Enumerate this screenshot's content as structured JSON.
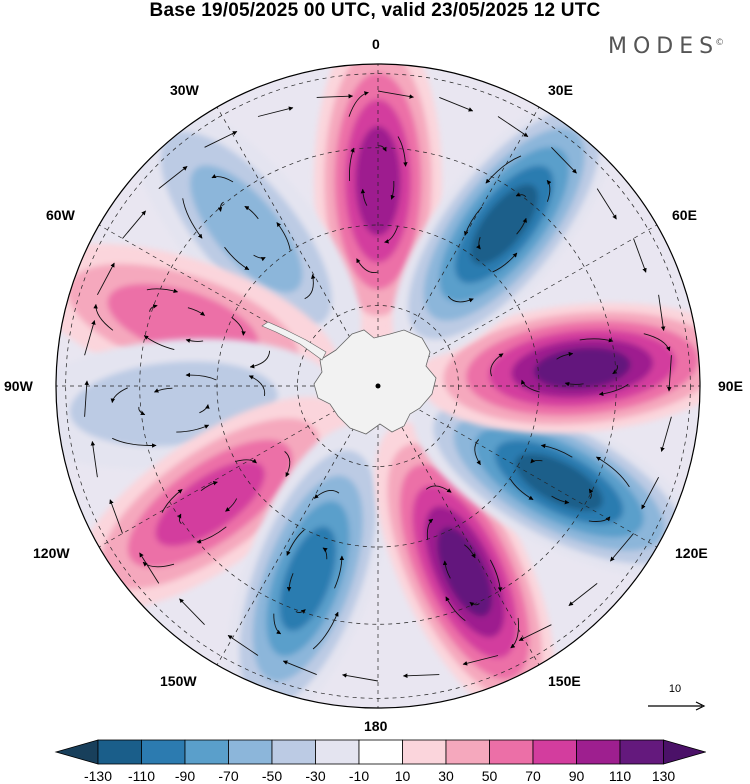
{
  "title": "Base 19/05/2025 00 UTC, valid 23/05/2025 12 UTC",
  "brand": "MODES",
  "brand_mark": "©",
  "longitude_labels": {
    "l0": "0",
    "l30e": "30E",
    "l60e": "60E",
    "l90e": "90E",
    "l120e": "120E",
    "l150e": "150E",
    "l180": "180",
    "l150w": "150W",
    "l120w": "120W",
    "l90w": "90W",
    "l60w": "60W",
    "l30w": "30W"
  },
  "reference_vector": {
    "label": "10"
  },
  "colorbar": {
    "labels": [
      "-130",
      "-110",
      "-90",
      "-70",
      "-50",
      "-30",
      "-10",
      "10",
      "30",
      "50",
      "70",
      "90",
      "110",
      "130"
    ],
    "colors": [
      "#183f5b",
      "#1a5e8a",
      "#2c7bb0",
      "#5a9fcb",
      "#8cb6da",
      "#bccbe4",
      "#e4e4f0",
      "#ffffff",
      "#fbd5dc",
      "#f5a8bd",
      "#ec6fa7",
      "#d33d9e",
      "#9e1f8f",
      "#64197d",
      "#4b1168"
    ]
  },
  "map": {
    "projection": "south polar stereographic",
    "lobes": [
      {
        "name": "lobe-0",
        "center_lon": 0,
        "sign": "positive",
        "peak": 110
      },
      {
        "name": "lobe-30w",
        "center_lon": -40,
        "sign": "negative",
        "peak": -70
      },
      {
        "name": "lobe-75w",
        "center_lon": -72,
        "sign": "positive",
        "peak": 70
      },
      {
        "name": "lobe-90w",
        "center_lon": -95,
        "sign": "negative",
        "peak": -50
      },
      {
        "name": "lobe-125w",
        "center_lon": -125,
        "sign": "positive",
        "peak": 90
      },
      {
        "name": "lobe-160w",
        "center_lon": -160,
        "sign": "negative",
        "peak": -110
      },
      {
        "name": "lobe-155e",
        "center_lon": 155,
        "sign": "positive",
        "peak": 130
      },
      {
        "name": "lobe-120e",
        "center_lon": 118,
        "sign": "negative",
        "peak": -130
      },
      {
        "name": "lobe-90e",
        "center_lon": 85,
        "sign": "positive",
        "peak": 130
      },
      {
        "name": "lobe-45e",
        "center_lon": 38,
        "sign": "negative",
        "peak": -130
      }
    ]
  }
}
